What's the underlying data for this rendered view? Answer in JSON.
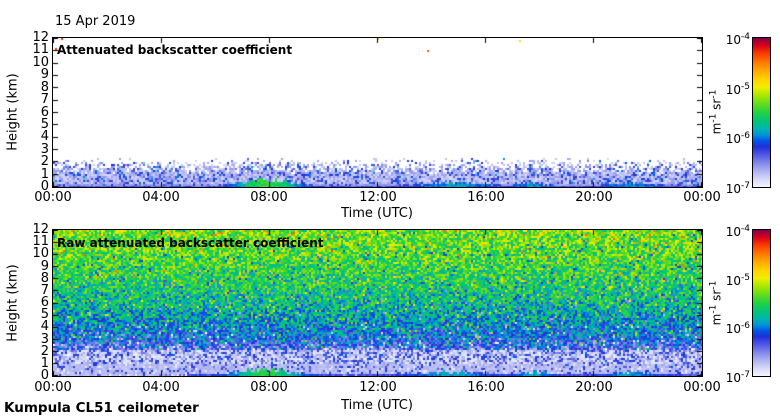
{
  "figure": {
    "date": "15 Apr 2019",
    "footer": "Kumpula CL51 ceilometer",
    "background": "#ffffff"
  },
  "colormap": {
    "description": "jet-like colormap fading to white at low end; t=0 maps to 1e-7, t=1 maps to 1e-4 m-1 sr-1",
    "stops": [
      [
        0.0,
        "#f4f4fd"
      ],
      [
        0.05,
        "#d8daf8"
      ],
      [
        0.1,
        "#b4b8f1"
      ],
      [
        0.16,
        "#8289e9"
      ],
      [
        0.22,
        "#4a55e4"
      ],
      [
        0.27,
        "#1f2fd8"
      ],
      [
        0.31,
        "#0055e8"
      ],
      [
        0.35,
        "#0094d8"
      ],
      [
        0.39,
        "#00b4ae"
      ],
      [
        0.44,
        "#00c47c"
      ],
      [
        0.5,
        "#22d244"
      ],
      [
        0.56,
        "#66dd1a"
      ],
      [
        0.62,
        "#b0e800"
      ],
      [
        0.67,
        "#f0ee00"
      ],
      [
        0.72,
        "#ffd400"
      ],
      [
        0.78,
        "#ffaa00"
      ],
      [
        0.84,
        "#ff7400"
      ],
      [
        0.9,
        "#f83800"
      ],
      [
        0.95,
        "#d80018"
      ],
      [
        1.0,
        "#800050"
      ]
    ]
  },
  "chart_data": [
    {
      "type": "heatmap",
      "title": "Attenuated backscatter coefficient",
      "xlabel": "Time (UTC)",
      "ylabel": "Height (km)",
      "x_ticks": [
        "00:00",
        "04:00",
        "08:00",
        "12:00",
        "16:00",
        "20:00",
        "00:00"
      ],
      "xlim_hours": [
        0,
        24
      ],
      "y_ticks": [
        0,
        1,
        2,
        3,
        4,
        5,
        6,
        7,
        8,
        9,
        10,
        11,
        12
      ],
      "ylim": [
        0,
        12
      ],
      "colorbar_ticks": [
        {
          "base": "10",
          "exp": "-4"
        },
        {
          "base": "10",
          "exp": "-5"
        },
        {
          "base": "10",
          "exp": "-6"
        },
        {
          "base": "10",
          "exp": "-7"
        }
      ],
      "colorbar_unit": [
        {
          "text": "m",
          "sup": false
        },
        {
          "text": "-1",
          "sup": true
        },
        {
          "text": " sr",
          "sup": false
        },
        {
          "text": "-1",
          "sup": true
        }
      ],
      "content": {
        "description": "Clear sky above ~2.3 km (white); blue aerosol speckle 0-2.3 km; continuous pale lavender layer below ~1 km; darker blue surface echoes around 06:30-09:30, 13-16:30, ~18 and ~21 UTC; a few stray colored specks near 11-12 km",
        "aerosol_top_km": 2.3,
        "dense_layer_top_km": 1.0,
        "surface_echoes": [
          {
            "utc": 7.9,
            "amp": 1.0,
            "width": 1.3
          },
          {
            "utc": 14.8,
            "amp": 0.5,
            "width": 1.6
          },
          {
            "utc": 17.8,
            "amp": 0.5,
            "width": 0.7
          },
          {
            "utc": 21.4,
            "amp": 0.45,
            "width": 1.2
          }
        ],
        "stray_speck_probability": 0.00012,
        "stray_speck_probability_top": 0.0025
      }
    },
    {
      "type": "heatmap",
      "title": "Raw attenuated backscatter coefficient",
      "xlabel": "Time (UTC)",
      "ylabel": "Height (km)",
      "x_ticks": [
        "00:00",
        "04:00",
        "08:00",
        "12:00",
        "16:00",
        "20:00",
        "00:00"
      ],
      "xlim_hours": [
        0,
        24
      ],
      "y_ticks": [
        0,
        1,
        2,
        3,
        4,
        5,
        6,
        7,
        8,
        9,
        10,
        11,
        12
      ],
      "ylim": [
        0,
        12
      ],
      "colorbar_ticks": [
        {
          "base": "10",
          "exp": "-4"
        },
        {
          "base": "10",
          "exp": "-5"
        },
        {
          "base": "10",
          "exp": "-6"
        },
        {
          "base": "10",
          "exp": "-7"
        }
      ],
      "colorbar_unit": [
        {
          "text": "m",
          "sup": false
        },
        {
          "text": "-1",
          "sup": true
        },
        {
          "text": " sr",
          "sup": false
        },
        {
          "text": "-1",
          "sup": true
        }
      ],
      "content": {
        "description": "Range-dependent raw noise over whole profile: pale lavender below ~1 km, white/blue speckled transition 1-2.2 km, blue 2.5-5 km, teal-green 5-9 km, green with yellow specks 9-12 km; same surface echoes at the bottom",
        "noise_profile_km_vs_t": [
          [
            0,
            0.08
          ],
          [
            1.0,
            0.1
          ],
          [
            1.9,
            0.17
          ],
          [
            3,
            0.29
          ],
          [
            4.5,
            0.37
          ],
          [
            6,
            0.43
          ],
          [
            8,
            0.49
          ],
          [
            10,
            0.54
          ],
          [
            12,
            0.58
          ]
        ],
        "surface_echoes": [
          {
            "utc": 7.9,
            "amp": 1.0,
            "width": 1.3
          },
          {
            "utc": 14.8,
            "amp": 0.5,
            "width": 1.6
          },
          {
            "utc": 17.8,
            "amp": 0.5,
            "width": 0.7
          },
          {
            "utc": 21.4,
            "amp": 0.45,
            "width": 1.2
          }
        ]
      }
    }
  ]
}
